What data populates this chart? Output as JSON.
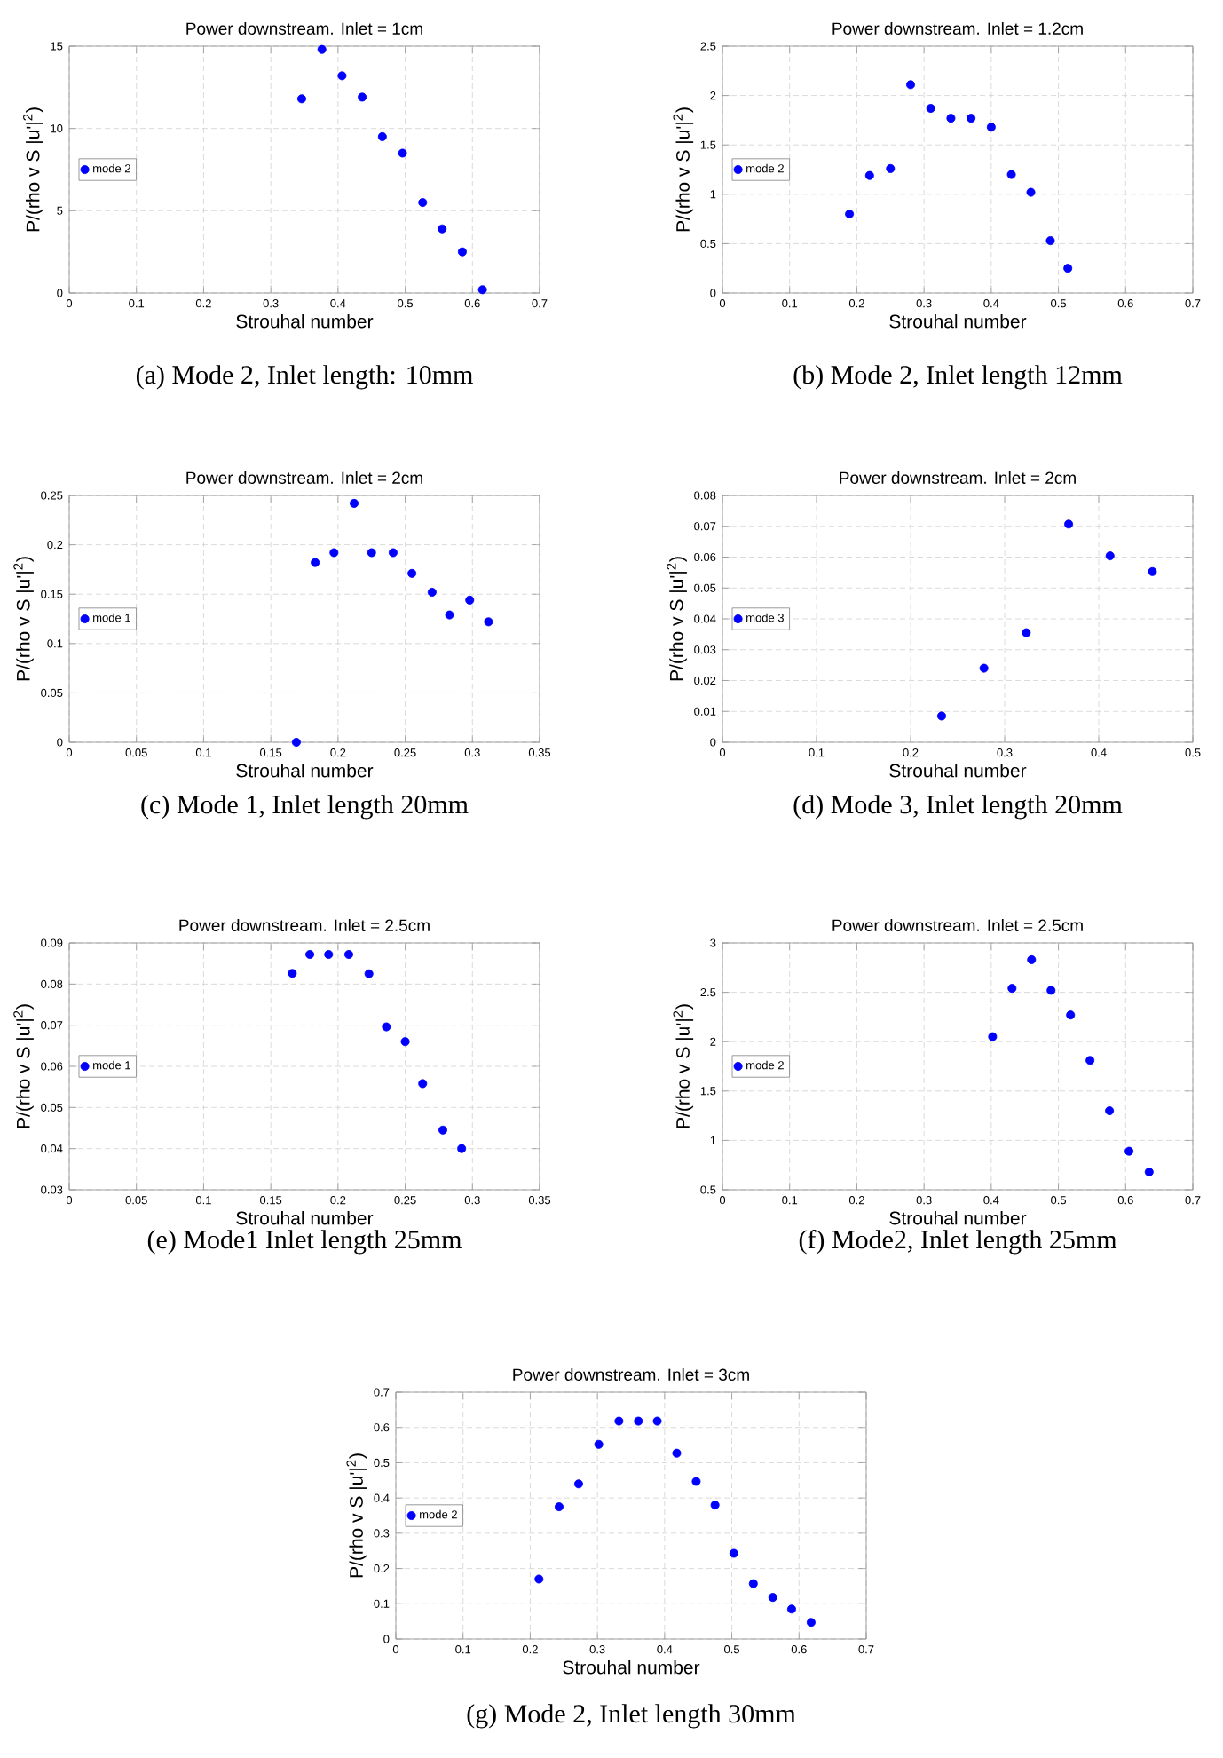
{
  "chart_data": [
    {
      "type": "scatter",
      "title": "Power downstream. Inlet = 1cm",
      "xlabel": "Strouhal number",
      "ylabel": "P/(rho v S |u'|$^{2}$)",
      "annotations": [
        "(a) Mode 2, Inlet length: 10mm"
      ],
      "grid": true,
      "legend": "left",
      "marker": "circle",
      "x": [
        0.346,
        0.376,
        0.406,
        0.436,
        0.466,
        0.496,
        0.526,
        0.555,
        0.585,
        0.615
      ],
      "series": [
        {
          "name": "mode 2",
          "color": "#0000ff",
          "values": [
            11.8,
            14.8,
            13.2,
            11.9,
            9.5,
            8.5,
            5.5,
            3.9,
            2.5,
            0.2
          ]
        }
      ],
      "xlim": [
        0,
        0.7
      ],
      "xticks": [
        0,
        0.1,
        0.2,
        0.3,
        0.4,
        0.5,
        0.6,
        0.7
      ],
      "ylim": [
        0,
        15
      ],
      "yticks": [
        0,
        5,
        10,
        15
      ]
    },
    {
      "type": "scatter",
      "title": "Power downstream. Inlet = 1.2cm",
      "xlabel": "Strouhal number",
      "ylabel": "P/(rho v S |u'|$^{2}$)",
      "annotations": [
        "(b) Mode 2, Inlet length 12mm"
      ],
      "grid": true,
      "legend": "left",
      "marker": "circle",
      "x": [
        0.189,
        0.219,
        0.25,
        0.28,
        0.31,
        0.34,
        0.37,
        0.4,
        0.43,
        0.459,
        0.488,
        0.514
      ],
      "series": [
        {
          "name": "mode 2",
          "color": "#0000ff",
          "values": [
            0.8,
            1.19,
            1.26,
            2.11,
            1.87,
            1.77,
            1.77,
            1.68,
            1.2,
            1.02,
            0.53,
            0.25
          ]
        }
      ],
      "xlim": [
        0,
        0.7
      ],
      "xticks": [
        0,
        0.1,
        0.2,
        0.3,
        0.4,
        0.5,
        0.6,
        0.7
      ],
      "ylim": [
        0,
        2.5
      ],
      "yticks": [
        0,
        0.5,
        1,
        1.5,
        2,
        2.5
      ]
    },
    {
      "type": "scatter",
      "title": "Power downstream. Inlet = 2cm",
      "xlabel": "Strouhal number",
      "ylabel": "P/(rho v S |u'|$^{2}$)",
      "annotations": [
        "(c) Mode 1, Inlet length 20mm"
      ],
      "grid": true,
      "legend": "left",
      "marker": "circle",
      "x": [
        0.169,
        0.183,
        0.197,
        0.212,
        0.225,
        0.241,
        0.255,
        0.27,
        0.283,
        0.298,
        0.312
      ],
      "series": [
        {
          "name": "mode 1",
          "color": "#0000ff",
          "values": [
            0.0,
            0.182,
            0.192,
            0.242,
            0.192,
            0.192,
            0.171,
            0.152,
            0.129,
            0.144,
            0.122
          ]
        }
      ],
      "xlim": [
        0,
        0.35
      ],
      "xticks": [
        0,
        0.05,
        0.1,
        0.15,
        0.2,
        0.25,
        0.3,
        0.35
      ],
      "ylim": [
        0,
        0.25
      ],
      "yticks": [
        0,
        0.05,
        0.1,
        0.15,
        0.2,
        0.25
      ]
    },
    {
      "type": "scatter",
      "title": "Power downstream. Inlet = 2cm",
      "xlabel": "Strouhal number",
      "ylabel": "P/(rho v S |u'|$^{2}$)",
      "annotations": [
        "(d) Mode 3, Inlet length 20mm"
      ],
      "grid": true,
      "legend": "left",
      "marker": "circle",
      "x": [
        0.233,
        0.278,
        0.323,
        0.368,
        0.412,
        0.457
      ],
      "series": [
        {
          "name": "mode 3",
          "color": "#0000ff",
          "values": [
            0.0085,
            0.024,
            0.0355,
            0.0707,
            0.0604,
            0.0553
          ]
        }
      ],
      "xlim": [
        0,
        0.5
      ],
      "xticks": [
        0,
        0.1,
        0.2,
        0.3,
        0.4,
        0.5
      ],
      "ylim": [
        0,
        0.08
      ],
      "yticks": [
        0,
        0.01,
        0.02,
        0.03,
        0.04,
        0.05,
        0.06,
        0.07,
        0.08
      ]
    },
    {
      "type": "scatter",
      "title": "Power downstream. Inlet = 2.5cm",
      "xlabel": "Strouhal number",
      "ylabel": "P/(rho v S |u'|$^{2}$)",
      "annotations": [
        "(e) Mode1 Inlet length 25mm"
      ],
      "grid": true,
      "legend": "left",
      "marker": "circle",
      "x": [
        0.166,
        0.179,
        0.193,
        0.208,
        0.223,
        0.236,
        0.25,
        0.263,
        0.278,
        0.292
      ],
      "series": [
        {
          "name": "mode 1",
          "color": "#0000ff",
          "values": [
            0.0826,
            0.0872,
            0.0872,
            0.0872,
            0.0825,
            0.0696,
            0.066,
            0.0558,
            0.0445,
            0.04
          ]
        }
      ],
      "xlim": [
        0,
        0.35
      ],
      "xticks": [
        0,
        0.05,
        0.1,
        0.15,
        0.2,
        0.25,
        0.3,
        0.35
      ],
      "ylim": [
        0.03,
        0.09
      ],
      "yticks": [
        0.03,
        0.04,
        0.05,
        0.06,
        0.07,
        0.08,
        0.09
      ]
    },
    {
      "type": "scatter",
      "title": "Power downstream. Inlet = 2.5cm",
      "xlabel": "Strouhal number",
      "ylabel": "P/(rho v S |u'|$^{2}$)",
      "annotations": [
        "(f) Mode2, Inlet length 25mm"
      ],
      "grid": true,
      "legend": "left",
      "marker": "circle",
      "x": [
        0.402,
        0.431,
        0.46,
        0.489,
        0.518,
        0.547,
        0.576,
        0.605,
        0.635
      ],
      "series": [
        {
          "name": "mode 2",
          "color": "#0000ff",
          "values": [
            2.05,
            2.54,
            2.83,
            2.52,
            2.27,
            1.81,
            1.3,
            0.89,
            0.68
          ]
        }
      ],
      "xlim": [
        0,
        0.7
      ],
      "xticks": [
        0,
        0.1,
        0.2,
        0.3,
        0.4,
        0.5,
        0.6,
        0.7
      ],
      "ylim": [
        0.5,
        3
      ],
      "yticks": [
        0.5,
        1,
        1.5,
        2,
        2.5,
        3
      ]
    },
    {
      "type": "scatter",
      "title": "Power downstream. Inlet = 3cm",
      "xlabel": "Strouhal number",
      "ylabel": "P/(rho v S |u'|$^{2}$)",
      "annotations": [
        "(g) Mode 2, Inlet length 30mm"
      ],
      "grid": true,
      "legend": "left",
      "marker": "circle",
      "x": [
        0.213,
        0.243,
        0.272,
        0.302,
        0.332,
        0.361,
        0.389,
        0.418,
        0.447,
        0.475,
        0.503,
        0.532,
        0.561,
        0.589,
        0.618
      ],
      "series": [
        {
          "name": "mode 2",
          "color": "#0000ff",
          "values": [
            0.17,
            0.375,
            0.44,
            0.552,
            0.618,
            0.618,
            0.618,
            0.527,
            0.447,
            0.38,
            0.243,
            0.157,
            0.118,
            0.085,
            0.047
          ]
        }
      ],
      "xlim": [
        0,
        0.7
      ],
      "xticks": [
        0,
        0.1,
        0.2,
        0.3,
        0.4,
        0.5,
        0.6,
        0.7
      ],
      "ylim": [
        0,
        0.7
      ],
      "yticks": [
        0,
        0.1,
        0.2,
        0.3,
        0.4,
        0.5,
        0.6,
        0.7
      ]
    }
  ]
}
